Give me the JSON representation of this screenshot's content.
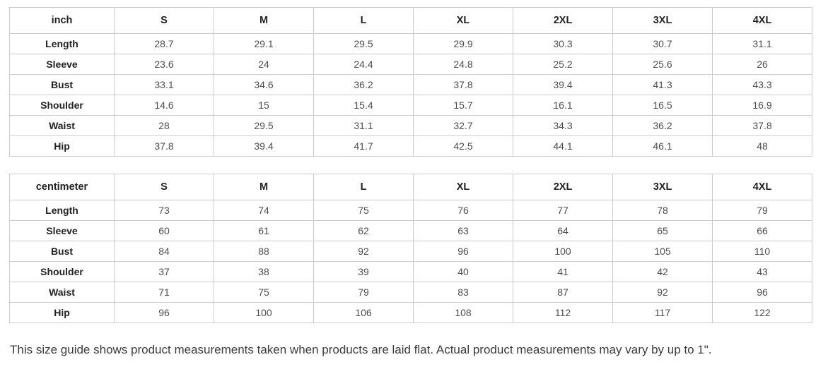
{
  "note": "This size guide shows product measurements taken when products are laid flat. Actual product measurements may vary by up to 1\".",
  "colors": {
    "border": "#cccccc",
    "header_text": "#222222",
    "value_text": "#4d4d4d",
    "note_text": "#3c3c3c",
    "background": "#ffffff"
  },
  "tables": [
    {
      "unit_label": "inch",
      "size_headers": [
        "S",
        "M",
        "L",
        "XL",
        "2XL",
        "3XL",
        "4XL"
      ],
      "rows": [
        {
          "label": "Length",
          "values": [
            "28.7",
            "29.1",
            "29.5",
            "29.9",
            "30.3",
            "30.7",
            "31.1"
          ]
        },
        {
          "label": "Sleeve",
          "values": [
            "23.6",
            "24",
            "24.4",
            "24.8",
            "25.2",
            "25.6",
            "26"
          ]
        },
        {
          "label": "Bust",
          "values": [
            "33.1",
            "34.6",
            "36.2",
            "37.8",
            "39.4",
            "41.3",
            "43.3"
          ]
        },
        {
          "label": "Shoulder",
          "values": [
            "14.6",
            "15",
            "15.4",
            "15.7",
            "16.1",
            "16.5",
            "16.9"
          ]
        },
        {
          "label": "Waist",
          "values": [
            "28",
            "29.5",
            "31.1",
            "32.7",
            "34.3",
            "36.2",
            "37.8"
          ]
        },
        {
          "label": "Hip",
          "values": [
            "37.8",
            "39.4",
            "41.7",
            "42.5",
            "44.1",
            "46.1",
            "48"
          ]
        }
      ]
    },
    {
      "unit_label": "centimeter",
      "size_headers": [
        "S",
        "M",
        "L",
        "XL",
        "2XL",
        "3XL",
        "4XL"
      ],
      "rows": [
        {
          "label": "Length",
          "values": [
            "73",
            "74",
            "75",
            "76",
            "77",
            "78",
            "79"
          ]
        },
        {
          "label": "Sleeve",
          "values": [
            "60",
            "61",
            "62",
            "63",
            "64",
            "65",
            "66"
          ]
        },
        {
          "label": "Bust",
          "values": [
            "84",
            "88",
            "92",
            "96",
            "100",
            "105",
            "110"
          ]
        },
        {
          "label": "Shoulder",
          "values": [
            "37",
            "38",
            "39",
            "40",
            "41",
            "42",
            "43"
          ]
        },
        {
          "label": "Waist",
          "values": [
            "71",
            "75",
            "79",
            "83",
            "87",
            "92",
            "96"
          ]
        },
        {
          "label": "Hip",
          "values": [
            "96",
            "100",
            "106",
            "108",
            "112",
            "117",
            "122"
          ]
        }
      ]
    }
  ]
}
